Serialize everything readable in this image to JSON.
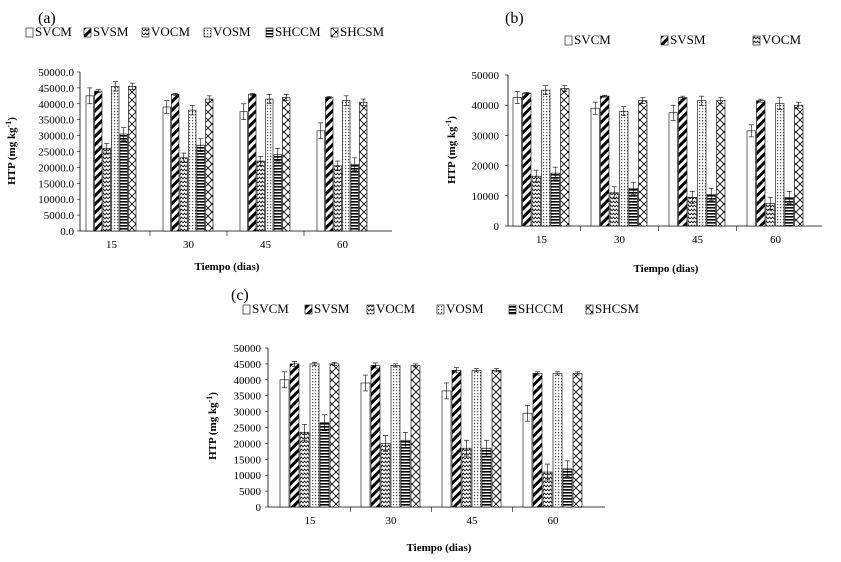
{
  "chart_data": [
    {
      "type": "bar",
      "panel_label": "(a)",
      "categories": [
        "15",
        "30",
        "45",
        "60"
      ],
      "xlabel": "Tiempo (dias)",
      "ylabel": "HTP (mg kg",
      "ylabel_sup": "-1",
      "ylabel_end": ")",
      "ylim": [
        0,
        50000
      ],
      "ytick_values": [
        0,
        5000,
        10000,
        15000,
        20000,
        25000,
        30000,
        35000,
        40000,
        45000,
        50000
      ],
      "ytick_labels": [
        "0.0",
        "5000.0",
        "10000.0",
        "15000.0",
        "20000.0",
        "25000.0",
        "30000.0",
        "35000.0",
        "40000.0",
        "45000.0",
        "50000.0"
      ],
      "legend": [
        "SVCM",
        "SVSM",
        "VOCM",
        "VOSM",
        "SHCCM",
        "SHCSM"
      ],
      "series": [
        {
          "name": "SVCM",
          "values": [
            42500,
            39000,
            37500,
            31500
          ],
          "errors": [
            2500,
            2000,
            2500,
            2500
          ]
        },
        {
          "name": "SVSM",
          "values": [
            44000,
            43000,
            43000,
            42000
          ],
          "errors": [
            500,
            300,
            300,
            300
          ]
        },
        {
          "name": "VOCM",
          "values": [
            26000,
            23000,
            22000,
            20500
          ],
          "errors": [
            1500,
            1500,
            1500,
            1500
          ]
        },
        {
          "name": "VOSM",
          "values": [
            45500,
            38000,
            41500,
            41000
          ],
          "errors": [
            1500,
            1500,
            1500,
            1500
          ]
        },
        {
          "name": "SHCCM",
          "values": [
            30500,
            27000,
            24000,
            21000
          ],
          "errors": [
            2000,
            2000,
            2000,
            2000
          ]
        },
        {
          "name": "SHCSM",
          "values": [
            45500,
            41500,
            42000,
            40500
          ],
          "errors": [
            1000,
            1000,
            1000,
            1000
          ]
        }
      ]
    },
    {
      "type": "bar",
      "panel_label": "(b)",
      "categories": [
        "15",
        "30",
        "45",
        "60"
      ],
      "xlabel": "Tiempo (dias)",
      "ylabel": "HTP (mg kg",
      "ylabel_sup": "-1",
      "ylabel_end": ")",
      "ylim": [
        0,
        50000
      ],
      "ytick_values": [
        0,
        10000,
        20000,
        30000,
        40000,
        50000
      ],
      "ytick_labels": [
        "0",
        "10000",
        "20000",
        "30000",
        "40000",
        "50000"
      ],
      "legend": [
        "SVCM",
        "SVSM",
        "VOCM"
      ],
      "series": [
        {
          "name": "SVCM",
          "values": [
            42500,
            39000,
            37500,
            31500
          ],
          "errors": [
            2000,
            2000,
            2500,
            2000
          ]
        },
        {
          "name": "SVSM",
          "values": [
            44000,
            43000,
            42500,
            41500
          ],
          "errors": [
            300,
            300,
            500,
            500
          ]
        },
        {
          "name": "VOCM",
          "values": [
            16500,
            11000,
            9500,
            7500
          ],
          "errors": [
            2000,
            2000,
            2000,
            2000
          ]
        },
        {
          "name": "VOSM",
          "values": [
            45000,
            38000,
            41500,
            40500
          ],
          "errors": [
            1500,
            1500,
            1500,
            2000
          ]
        },
        {
          "name": "SHCCM",
          "values": [
            17500,
            12500,
            10500,
            9500
          ],
          "errors": [
            2000,
            2000,
            2000,
            2000
          ]
        },
        {
          "name": "SHCSM",
          "values": [
            45500,
            41500,
            41500,
            40000
          ],
          "errors": [
            1000,
            1000,
            1000,
            1000
          ]
        }
      ]
    },
    {
      "type": "bar",
      "panel_label": "(c)",
      "categories": [
        "15",
        "30",
        "45",
        "60"
      ],
      "xlabel": "Tiempo (dias)",
      "ylabel": "HTP (mg kg",
      "ylabel_sup": "-1",
      "ylabel_end": ")",
      "ylim": [
        0,
        50000
      ],
      "ytick_values": [
        0,
        5000,
        10000,
        15000,
        20000,
        25000,
        30000,
        35000,
        40000,
        45000,
        50000
      ],
      "ytick_labels": [
        "0",
        "5000",
        "10000",
        "15000",
        "20000",
        "25000",
        "30000",
        "35000",
        "40000",
        "45000",
        "50000"
      ],
      "legend": [
        "SVCM",
        "SVSM",
        "VOCM",
        "VOSM",
        "SHCCM",
        "SHCSM"
      ],
      "series": [
        {
          "name": "SVCM",
          "values": [
            40000,
            39000,
            36500,
            29500
          ],
          "errors": [
            2500,
            2500,
            2500,
            2500
          ]
        },
        {
          "name": "SVSM",
          "values": [
            45000,
            44500,
            43000,
            42000
          ],
          "errors": [
            800,
            800,
            800,
            500
          ]
        },
        {
          "name": "VOCM",
          "values": [
            23500,
            20000,
            18500,
            11000
          ],
          "errors": [
            2500,
            2500,
            2500,
            2500
          ]
        },
        {
          "name": "VOSM",
          "values": [
            45000,
            44500,
            43000,
            42000
          ],
          "errors": [
            500,
            500,
            500,
            500
          ]
        },
        {
          "name": "SHCCM",
          "values": [
            26500,
            21000,
            18500,
            12000
          ],
          "errors": [
            2500,
            2500,
            2500,
            2500
          ]
        },
        {
          "name": "SHCSM",
          "values": [
            45000,
            44500,
            43000,
            42000
          ],
          "errors": [
            500,
            500,
            500,
            500
          ]
        }
      ]
    }
  ]
}
